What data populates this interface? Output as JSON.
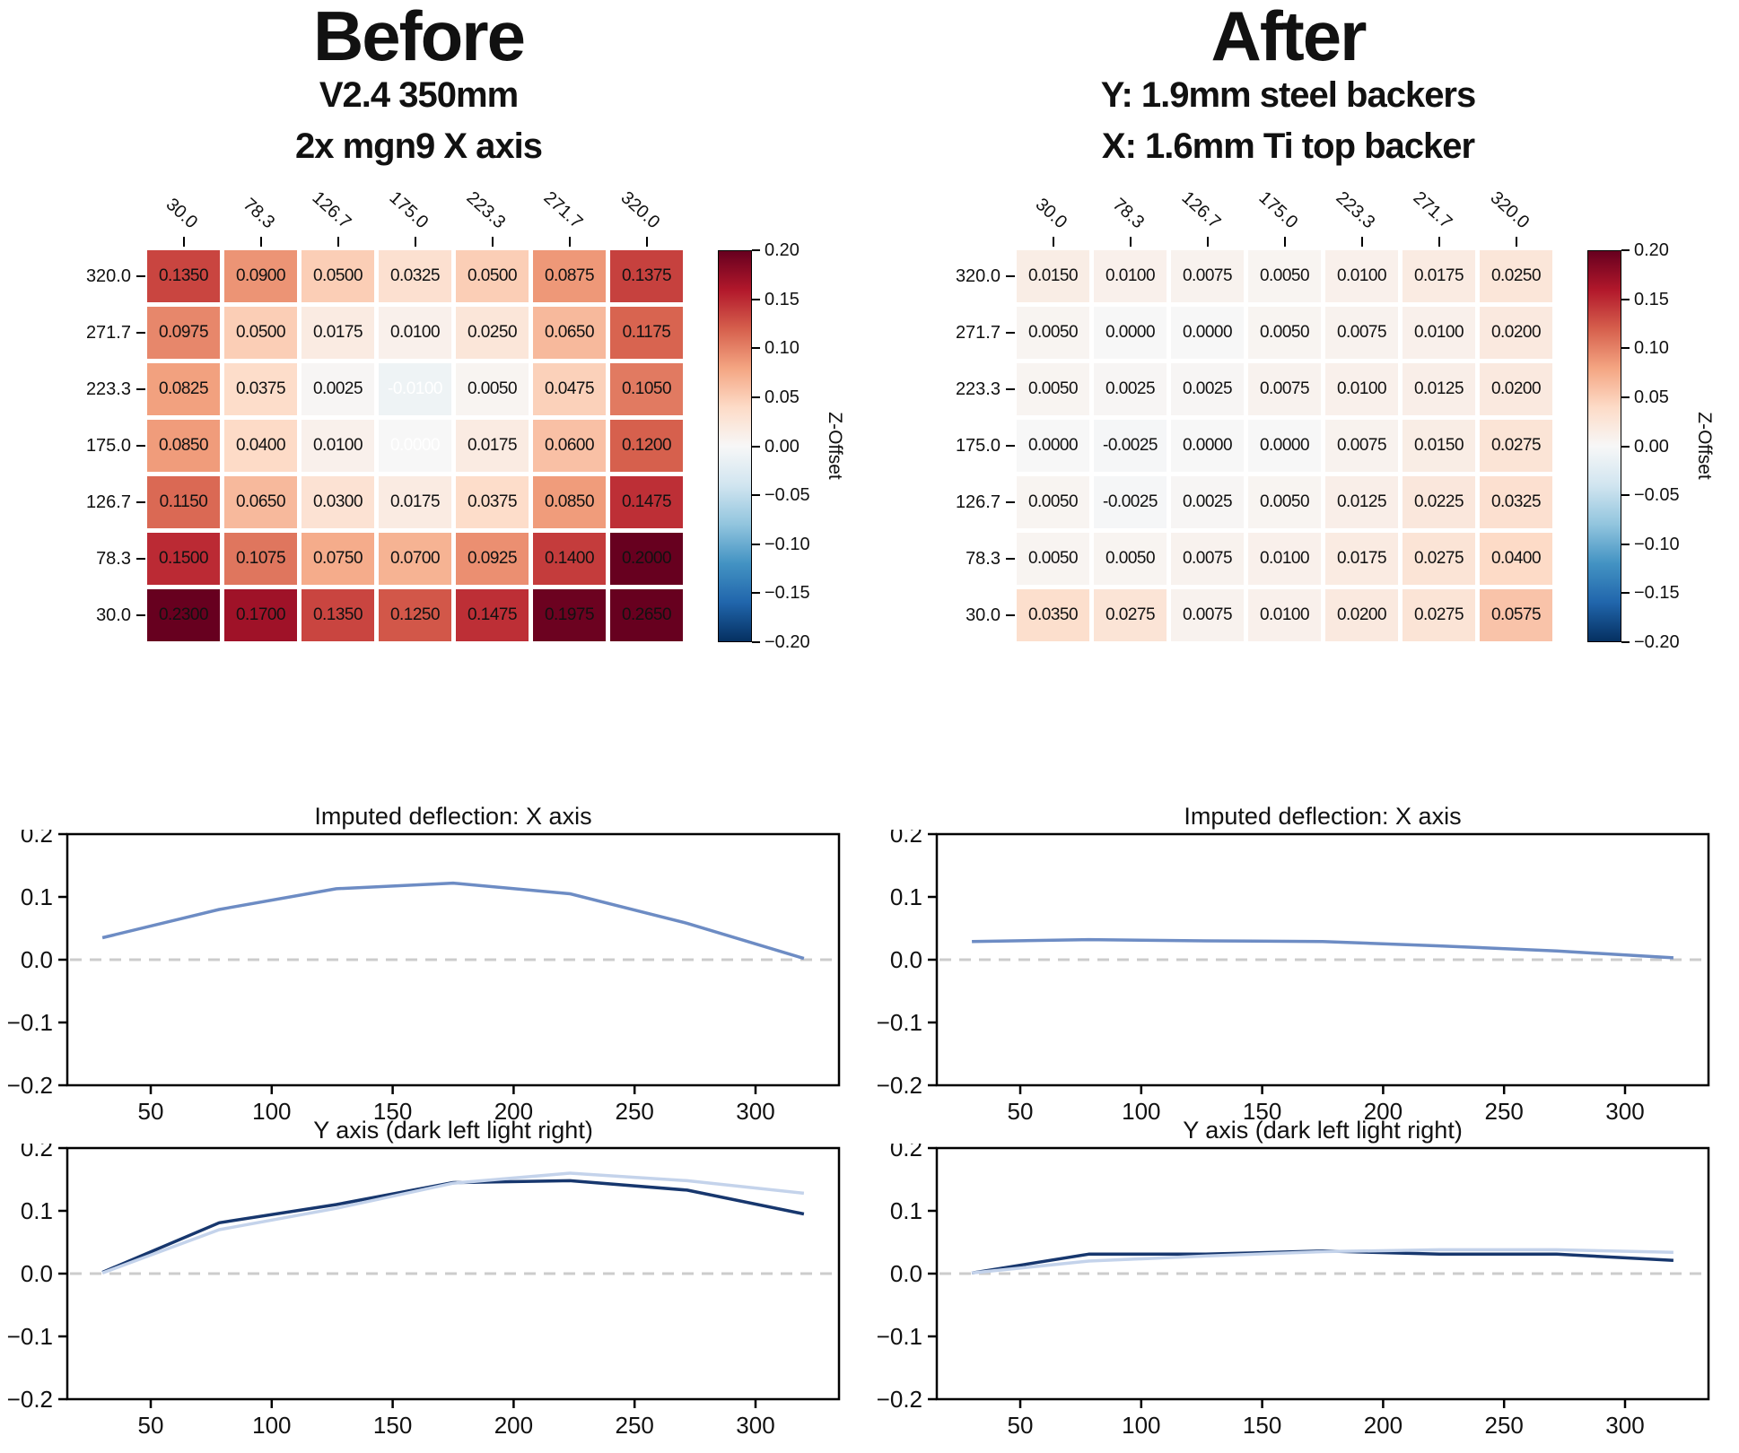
{
  "panels": {
    "before": {
      "title": "Before",
      "subtitle1": "V2.4 350mm",
      "subtitle2": "2x mgn9 X axis"
    },
    "after": {
      "title": "After",
      "subtitle1": "Y: 1.9mm steel backers",
      "subtitle2": "X: 1.6mm Ti top backer"
    }
  },
  "colors": {
    "mid_blue": "#6d8cc4",
    "dark_navy": "#17376e",
    "light_blue": "#c4d3eb",
    "zero_dash": "#cccccc",
    "frame": "#000000",
    "cmap_stops": [
      "#053061",
      "#2166ac",
      "#4393c3",
      "#92c5de",
      "#d1e5f0",
      "#f7f7f7",
      "#fddbc7",
      "#f4a582",
      "#d6604d",
      "#b2182b",
      "#67001f"
    ]
  },
  "colorbar": {
    "label": "Z-Offset",
    "tick_values": [
      0.2,
      0.15,
      0.1,
      0.05,
      0.0,
      -0.05,
      -0.1,
      -0.15,
      -0.2
    ],
    "tick_labels": [
      "0.20",
      "0.15",
      "0.10",
      "0.05",
      "0.00",
      "−0.05",
      "−0.10",
      "−0.15",
      "−0.20"
    ]
  },
  "chart_data": [
    {
      "type": "heatmap",
      "panel": "before",
      "colormap": "RdBu_r",
      "vmin": -0.2,
      "vmax": 0.2,
      "colorbar_label": "Z-Offset",
      "x_ticklabels": [
        "30.0",
        "78.3",
        "126.7",
        "175.0",
        "223.3",
        "271.7",
        "320.0"
      ],
      "y_ticklabels": [
        "320.0",
        "271.7",
        "223.3",
        "175.0",
        "126.7",
        "78.3",
        "30.0"
      ],
      "values": [
        [
          0.135,
          0.09,
          0.05,
          0.0325,
          0.05,
          0.0875,
          0.1375
        ],
        [
          0.0975,
          0.05,
          0.0175,
          0.01,
          0.025,
          0.065,
          0.1175
        ],
        [
          0.0825,
          0.0375,
          0.0025,
          -0.01,
          0.005,
          0.0475,
          0.105
        ],
        [
          0.085,
          0.04,
          0.01,
          0.0,
          0.0175,
          0.06,
          0.12
        ],
        [
          0.115,
          0.065,
          0.03,
          0.0175,
          0.0375,
          0.085,
          0.1475
        ],
        [
          0.15,
          0.1075,
          0.075,
          0.07,
          0.0925,
          0.14,
          0.2
        ],
        [
          0.23,
          0.17,
          0.135,
          0.125,
          0.1475,
          0.1975,
          0.265
        ]
      ],
      "white_text_cells": [
        [
          2,
          3
        ],
        [
          3,
          3
        ]
      ]
    },
    {
      "type": "heatmap",
      "panel": "after",
      "colormap": "RdBu_r",
      "vmin": -0.2,
      "vmax": 0.2,
      "colorbar_label": "Z-Offset",
      "x_ticklabels": [
        "30.0",
        "78.3",
        "126.7",
        "175.0",
        "223.3",
        "271.7",
        "320.0"
      ],
      "y_ticklabels": [
        "320.0",
        "271.7",
        "223.3",
        "175.0",
        "126.7",
        "78.3",
        "30.0"
      ],
      "values": [
        [
          0.015,
          0.01,
          0.0075,
          0.005,
          0.01,
          0.0175,
          0.025
        ],
        [
          0.005,
          0.0,
          0.0,
          0.005,
          0.0075,
          0.01,
          0.02
        ],
        [
          0.005,
          0.0025,
          0.0025,
          0.0075,
          0.01,
          0.0125,
          0.02
        ],
        [
          0.0,
          -0.0025,
          0.0,
          0.0,
          0.0075,
          0.015,
          0.0275
        ],
        [
          0.005,
          -0.0025,
          0.0025,
          0.005,
          0.0125,
          0.0225,
          0.0325
        ],
        [
          0.005,
          0.005,
          0.0075,
          0.01,
          0.0175,
          0.0275,
          0.04
        ],
        [
          0.035,
          0.0275,
          0.0075,
          0.01,
          0.02,
          0.0275,
          0.0575
        ]
      ],
      "white_text_cells": []
    },
    {
      "type": "line",
      "panel": "before",
      "title": "Imputed deflection: X axis",
      "x": [
        30,
        78.3,
        126.7,
        175.0,
        223.3,
        271.7,
        320
      ],
      "xlim": [
        15.5,
        334.5
      ],
      "ylim": [
        -0.2,
        0.2
      ],
      "ytick_values": [
        0.2,
        0.1,
        0.0,
        -0.1,
        -0.2
      ],
      "ytick_labels": [
        "0.2",
        "0.1",
        "0.0",
        "−0.1",
        "−0.2"
      ],
      "xtick_values": [
        50,
        100,
        150,
        200,
        250,
        300
      ],
      "xtick_labels": [
        "50",
        "100",
        "150",
        "200",
        "250",
        "300"
      ],
      "zero_line": true,
      "series": [
        {
          "name": "imputed-x-deflection",
          "color_key": "mid_blue",
          "values": [
            0.035,
            0.08,
            0.113,
            0.122,
            0.105,
            0.058,
            0.002
          ]
        }
      ]
    },
    {
      "type": "line",
      "panel": "after",
      "title": "Imputed deflection: X axis",
      "x": [
        30,
        78.3,
        126.7,
        175.0,
        223.3,
        271.7,
        320
      ],
      "xlim": [
        15.5,
        334.5
      ],
      "ylim": [
        -0.2,
        0.2
      ],
      "ytick_values": [
        0.2,
        0.1,
        0.0,
        -0.1,
        -0.2
      ],
      "ytick_labels": [
        "0.2",
        "0.1",
        "0.0",
        "−0.1",
        "−0.2"
      ],
      "xtick_values": [
        50,
        100,
        150,
        200,
        250,
        300
      ],
      "xtick_labels": [
        "50",
        "100",
        "150",
        "200",
        "250",
        "300"
      ],
      "zero_line": true,
      "series": [
        {
          "name": "imputed-x-deflection",
          "color_key": "mid_blue",
          "values": [
            0.029,
            0.032,
            0.03,
            0.029,
            0.022,
            0.014,
            0.003
          ]
        }
      ]
    },
    {
      "type": "line",
      "panel": "before",
      "title": "Y axis (dark left light right)",
      "x": [
        30,
        78.3,
        126.7,
        175.0,
        223.3,
        271.7,
        320
      ],
      "xlim": [
        15.5,
        334.5
      ],
      "ylim": [
        -0.2,
        0.2
      ],
      "ytick_values": [
        0.2,
        0.1,
        0.0,
        -0.1,
        -0.2
      ],
      "ytick_labels": [
        "0.2",
        "0.1",
        "0.0",
        "−0.1",
        "−0.2"
      ],
      "xtick_values": [
        50,
        100,
        150,
        200,
        250,
        300
      ],
      "xtick_labels": [
        "50",
        "100",
        "150",
        "200",
        "250",
        "300"
      ],
      "zero_line": true,
      "series": [
        {
          "name": "y-deflection-dark-left",
          "color_key": "dark_navy",
          "values": [
            0.002,
            0.081,
            0.11,
            0.145,
            0.148,
            0.133,
            0.095
          ]
        },
        {
          "name": "y-deflection-light-right",
          "color_key": "light_blue",
          "values": [
            0.001,
            0.07,
            0.104,
            0.144,
            0.16,
            0.148,
            0.128
          ]
        }
      ]
    },
    {
      "type": "line",
      "panel": "after",
      "title": "Y axis (dark left light right)",
      "x": [
        30,
        78.3,
        126.7,
        175.0,
        223.3,
        271.7,
        320
      ],
      "xlim": [
        15.5,
        334.5
      ],
      "ylim": [
        -0.2,
        0.2
      ],
      "ytick_values": [
        0.2,
        0.1,
        0.0,
        -0.1,
        -0.2
      ],
      "ytick_labels": [
        "0.2",
        "0.1",
        "0.0",
        "−0.1",
        "−0.2"
      ],
      "xtick_values": [
        50,
        100,
        150,
        200,
        250,
        300
      ],
      "xtick_labels": [
        "50",
        "100",
        "150",
        "200",
        "250",
        "300"
      ],
      "zero_line": true,
      "series": [
        {
          "name": "y-deflection-dark-left",
          "color_key": "dark_navy",
          "values": [
            0.001,
            0.031,
            0.031,
            0.036,
            0.031,
            0.031,
            0.021
          ]
        },
        {
          "name": "y-deflection-light-right",
          "color_key": "light_blue",
          "values": [
            0.001,
            0.02,
            0.028,
            0.035,
            0.038,
            0.038,
            0.034
          ]
        }
      ]
    }
  ]
}
